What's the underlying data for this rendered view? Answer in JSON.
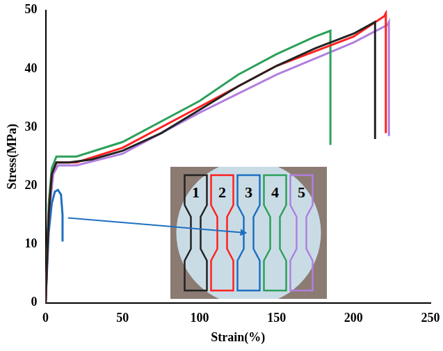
{
  "chart_data": {
    "type": "line",
    "x_label": "Strain(%)",
    "y_label": "Stress(MPa)",
    "xlim": [
      0,
      250
    ],
    "xticks": [
      0,
      50,
      100,
      150,
      200,
      250
    ],
    "ylim": [
      0,
      50
    ],
    "yticks": [
      0,
      10,
      20,
      30,
      40,
      50
    ],
    "grid": false,
    "series": [
      {
        "name": "1",
        "color": "#222222",
        "x": [
          0,
          1,
          2,
          4,
          7,
          15,
          30,
          50,
          75,
          100,
          125,
          150,
          175,
          200,
          214,
          214
        ],
        "values": [
          0,
          8,
          15,
          22,
          24,
          24,
          24.5,
          26,
          29,
          33,
          37,
          40.5,
          43.5,
          46,
          48,
          28
        ]
      },
      {
        "name": "2",
        "color": "#ff2020",
        "x": [
          0,
          2,
          4,
          7,
          20,
          50,
          100,
          150,
          200,
          220,
          221,
          221
        ],
        "values": [
          0,
          15,
          22,
          24,
          24,
          26.5,
          33.5,
          40.5,
          45.5,
          49,
          49.5,
          29
        ]
      },
      {
        "name": "3",
        "color": "#1f6fc0",
        "x": [
          0,
          2,
          4,
          6,
          8,
          10,
          11,
          11
        ],
        "values": [
          0,
          12,
          17,
          19,
          19.3,
          18.5,
          15,
          10.5
        ]
      },
      {
        "name": "4",
        "color": "#2ca05a",
        "x": [
          0,
          2,
          4,
          7,
          20,
          50,
          100,
          125,
          150,
          175,
          185,
          185
        ],
        "values": [
          0,
          17,
          23,
          25,
          25,
          27.5,
          34.5,
          39,
          42.5,
          45.5,
          46.5,
          27
        ]
      },
      {
        "name": "5",
        "color": "#b07fe0",
        "x": [
          0,
          2,
          5,
          8,
          20,
          50,
          100,
          150,
          200,
          222,
          223,
          223
        ],
        "values": [
          0,
          15,
          22,
          23.5,
          23.5,
          25.5,
          32.5,
          39,
          44.5,
          47.5,
          48,
          28.5
        ]
      }
    ]
  }
}
